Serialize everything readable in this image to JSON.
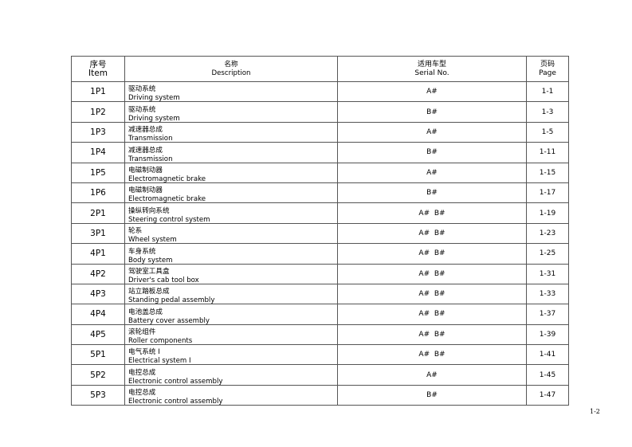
{
  "header": {
    "item_cn": "序号",
    "item_en": "Item",
    "desc_cn": "名称",
    "desc_en": "Description",
    "serial_cn": "适用车型",
    "serial_en": "Serial No.",
    "page_cn": "页码",
    "page_en": "Page"
  },
  "rows": [
    {
      "item": "1P1",
      "cn": "驱动系统",
      "en": "Driving system",
      "serial": "A#",
      "page": "1-1"
    },
    {
      "item": "1P2",
      "cn": "驱动系统",
      "en": "Driving system",
      "serial": "B#",
      "page": "1-3"
    },
    {
      "item": "1P3",
      "cn": "减速器总成",
      "en": "Transmission",
      "serial": "A#",
      "page": "1-5"
    },
    {
      "item": "1P4",
      "cn": "减速器总成",
      "en": "Transmission",
      "serial": "B#",
      "page": "1-11"
    },
    {
      "item": "1P5",
      "cn": "电磁制动器",
      "en": "Electromagnetic brake",
      "serial": "A#",
      "page": "1-15"
    },
    {
      "item": "1P6",
      "cn": "电磁制动器",
      "en": "Electromagnetic brake",
      "serial": "B#",
      "page": "1-17"
    },
    {
      "item": "2P1",
      "cn": "操纵转向系统",
      "en": "Steering control system",
      "serial": "A#  B#",
      "page": "1-19"
    },
    {
      "item": "3P1",
      "cn": "轮系",
      "en": "Wheel system",
      "serial": "A#  B#",
      "page": "1-23"
    },
    {
      "item": "4P1",
      "cn": "车身系统",
      "en": "Body system",
      "serial": "A#  B#",
      "page": "1-25"
    },
    {
      "item": "4P2",
      "cn": "驾驶室工具盒",
      "en": "Driver's cab tool box",
      "serial": "A#  B#",
      "page": "1-31"
    },
    {
      "item": "4P3",
      "cn": "站立踏板总成",
      "en": "Standing pedal assembly",
      "serial": "A#  B#",
      "page": "1-33"
    },
    {
      "item": "4P4",
      "cn": "电池盖总成",
      "en": "Battery cover assembly",
      "serial": "A#  B#",
      "page": "1-37"
    },
    {
      "item": "4P5",
      "cn": "滚轮组件",
      "en": "Roller components",
      "serial": "A#  B#",
      "page": "1-39"
    },
    {
      "item": "5P1",
      "cn": "电气系统 I",
      "en": "Electrical system I",
      "serial": "A#  B#",
      "page": "1-41"
    },
    {
      "item": "5P2",
      "cn": "电控总成",
      "en": "Electronic control assembly",
      "serial": "A#",
      "page": "1-45"
    },
    {
      "item": "5P3",
      "cn": "电控总成",
      "en": "Electronic control assembly",
      "serial": "B#",
      "page": "1-47"
    }
  ],
  "page_number": "1-2"
}
